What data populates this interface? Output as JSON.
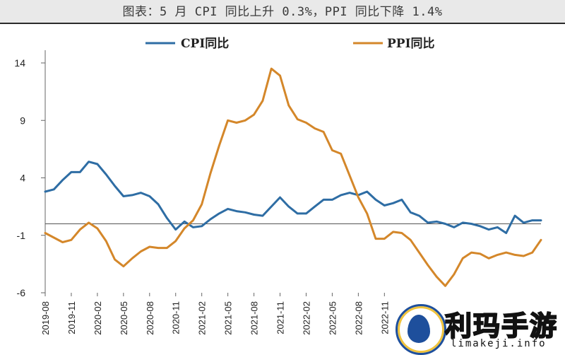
{
  "caption": "图表：5 月 CPI 同比上升 0.3%，PPI 同比下降 1.4%",
  "watermark": {
    "brand": "利玛手游",
    "url": "limakeji.info"
  },
  "chart_data": {
    "type": "line",
    "title": "图表：5 月 CPI 同比上升 0.3%，PPI 同比下降 1.4%",
    "ylim": [
      -6,
      14
    ],
    "yticks": [
      14,
      9,
      4,
      -1,
      -6
    ],
    "x": [
      "2019-08",
      "2019-09",
      "2019-10",
      "2019-11",
      "2019-12",
      "2020-01",
      "2020-02",
      "2020-03",
      "2020-04",
      "2020-05",
      "2020-06",
      "2020-07",
      "2020-08",
      "2020-09",
      "2020-10",
      "2020-11",
      "2020-12",
      "2021-01",
      "2021-02",
      "2021-03",
      "2021-04",
      "2021-05",
      "2021-06",
      "2021-07",
      "2021-08",
      "2021-09",
      "2021-10",
      "2021-11",
      "2021-12",
      "2022-01",
      "2022-02",
      "2022-03",
      "2022-04",
      "2022-05",
      "2022-06",
      "2022-07",
      "2022-08",
      "2022-09",
      "2022-10",
      "2022-11",
      "2022-12",
      "2023-01",
      "2023-02",
      "2023-03",
      "2023-04",
      "2023-05",
      "2023-06",
      "2023-07",
      "2023-08",
      "2023-09",
      "2023-10",
      "2023-11",
      "2023-12",
      "2024-01",
      "2024-02",
      "2024-03",
      "2024-04",
      "2024-05"
    ],
    "xtick_labels": [
      "2019-08",
      "2019-11",
      "2020-02",
      "2020-05",
      "2020-08",
      "2020-11",
      "2021-02",
      "2021-05",
      "2021-08",
      "2021-11",
      "2022-02",
      "2022-05",
      "2022-08",
      "2022-11"
    ],
    "series": [
      {
        "name": "CPI同比",
        "color": "#2e6da4",
        "values": [
          2.8,
          3.0,
          3.8,
          4.5,
          4.5,
          5.4,
          5.2,
          4.3,
          3.3,
          2.4,
          2.5,
          2.7,
          2.4,
          1.7,
          0.5,
          -0.5,
          0.2,
          -0.3,
          -0.2,
          0.4,
          0.9,
          1.3,
          1.1,
          1.0,
          0.8,
          0.7,
          1.5,
          2.3,
          1.5,
          0.9,
          0.9,
          1.5,
          2.1,
          2.1,
          2.5,
          2.7,
          2.5,
          2.8,
          2.1,
          1.6,
          1.8,
          2.1,
          1.0,
          0.7,
          0.1,
          0.2,
          0.0,
          -0.3,
          0.1,
          0.0,
          -0.2,
          -0.5,
          -0.3,
          -0.8,
          0.7,
          0.1,
          0.3,
          0.3
        ]
      },
      {
        "name": "PPI同比",
        "color": "#d4872a",
        "values": [
          -0.8,
          -1.2,
          -1.6,
          -1.4,
          -0.5,
          0.1,
          -0.4,
          -1.5,
          -3.1,
          -3.7,
          -3.0,
          -2.4,
          -2.0,
          -2.1,
          -2.1,
          -1.5,
          -0.4,
          0.3,
          1.7,
          4.4,
          6.8,
          9.0,
          8.8,
          9.0,
          9.5,
          10.7,
          13.5,
          12.9,
          10.3,
          9.1,
          8.8,
          8.3,
          8.0,
          6.4,
          6.1,
          4.2,
          2.3,
          0.9,
          -1.3,
          -1.3,
          -0.7,
          -0.8,
          -1.4,
          -2.5,
          -3.6,
          -4.6,
          -5.4,
          -4.4,
          -3.0,
          -2.5,
          -2.6,
          -3.0,
          -2.7,
          -2.5,
          -2.7,
          -2.8,
          -2.5,
          -1.4
        ]
      }
    ]
  }
}
